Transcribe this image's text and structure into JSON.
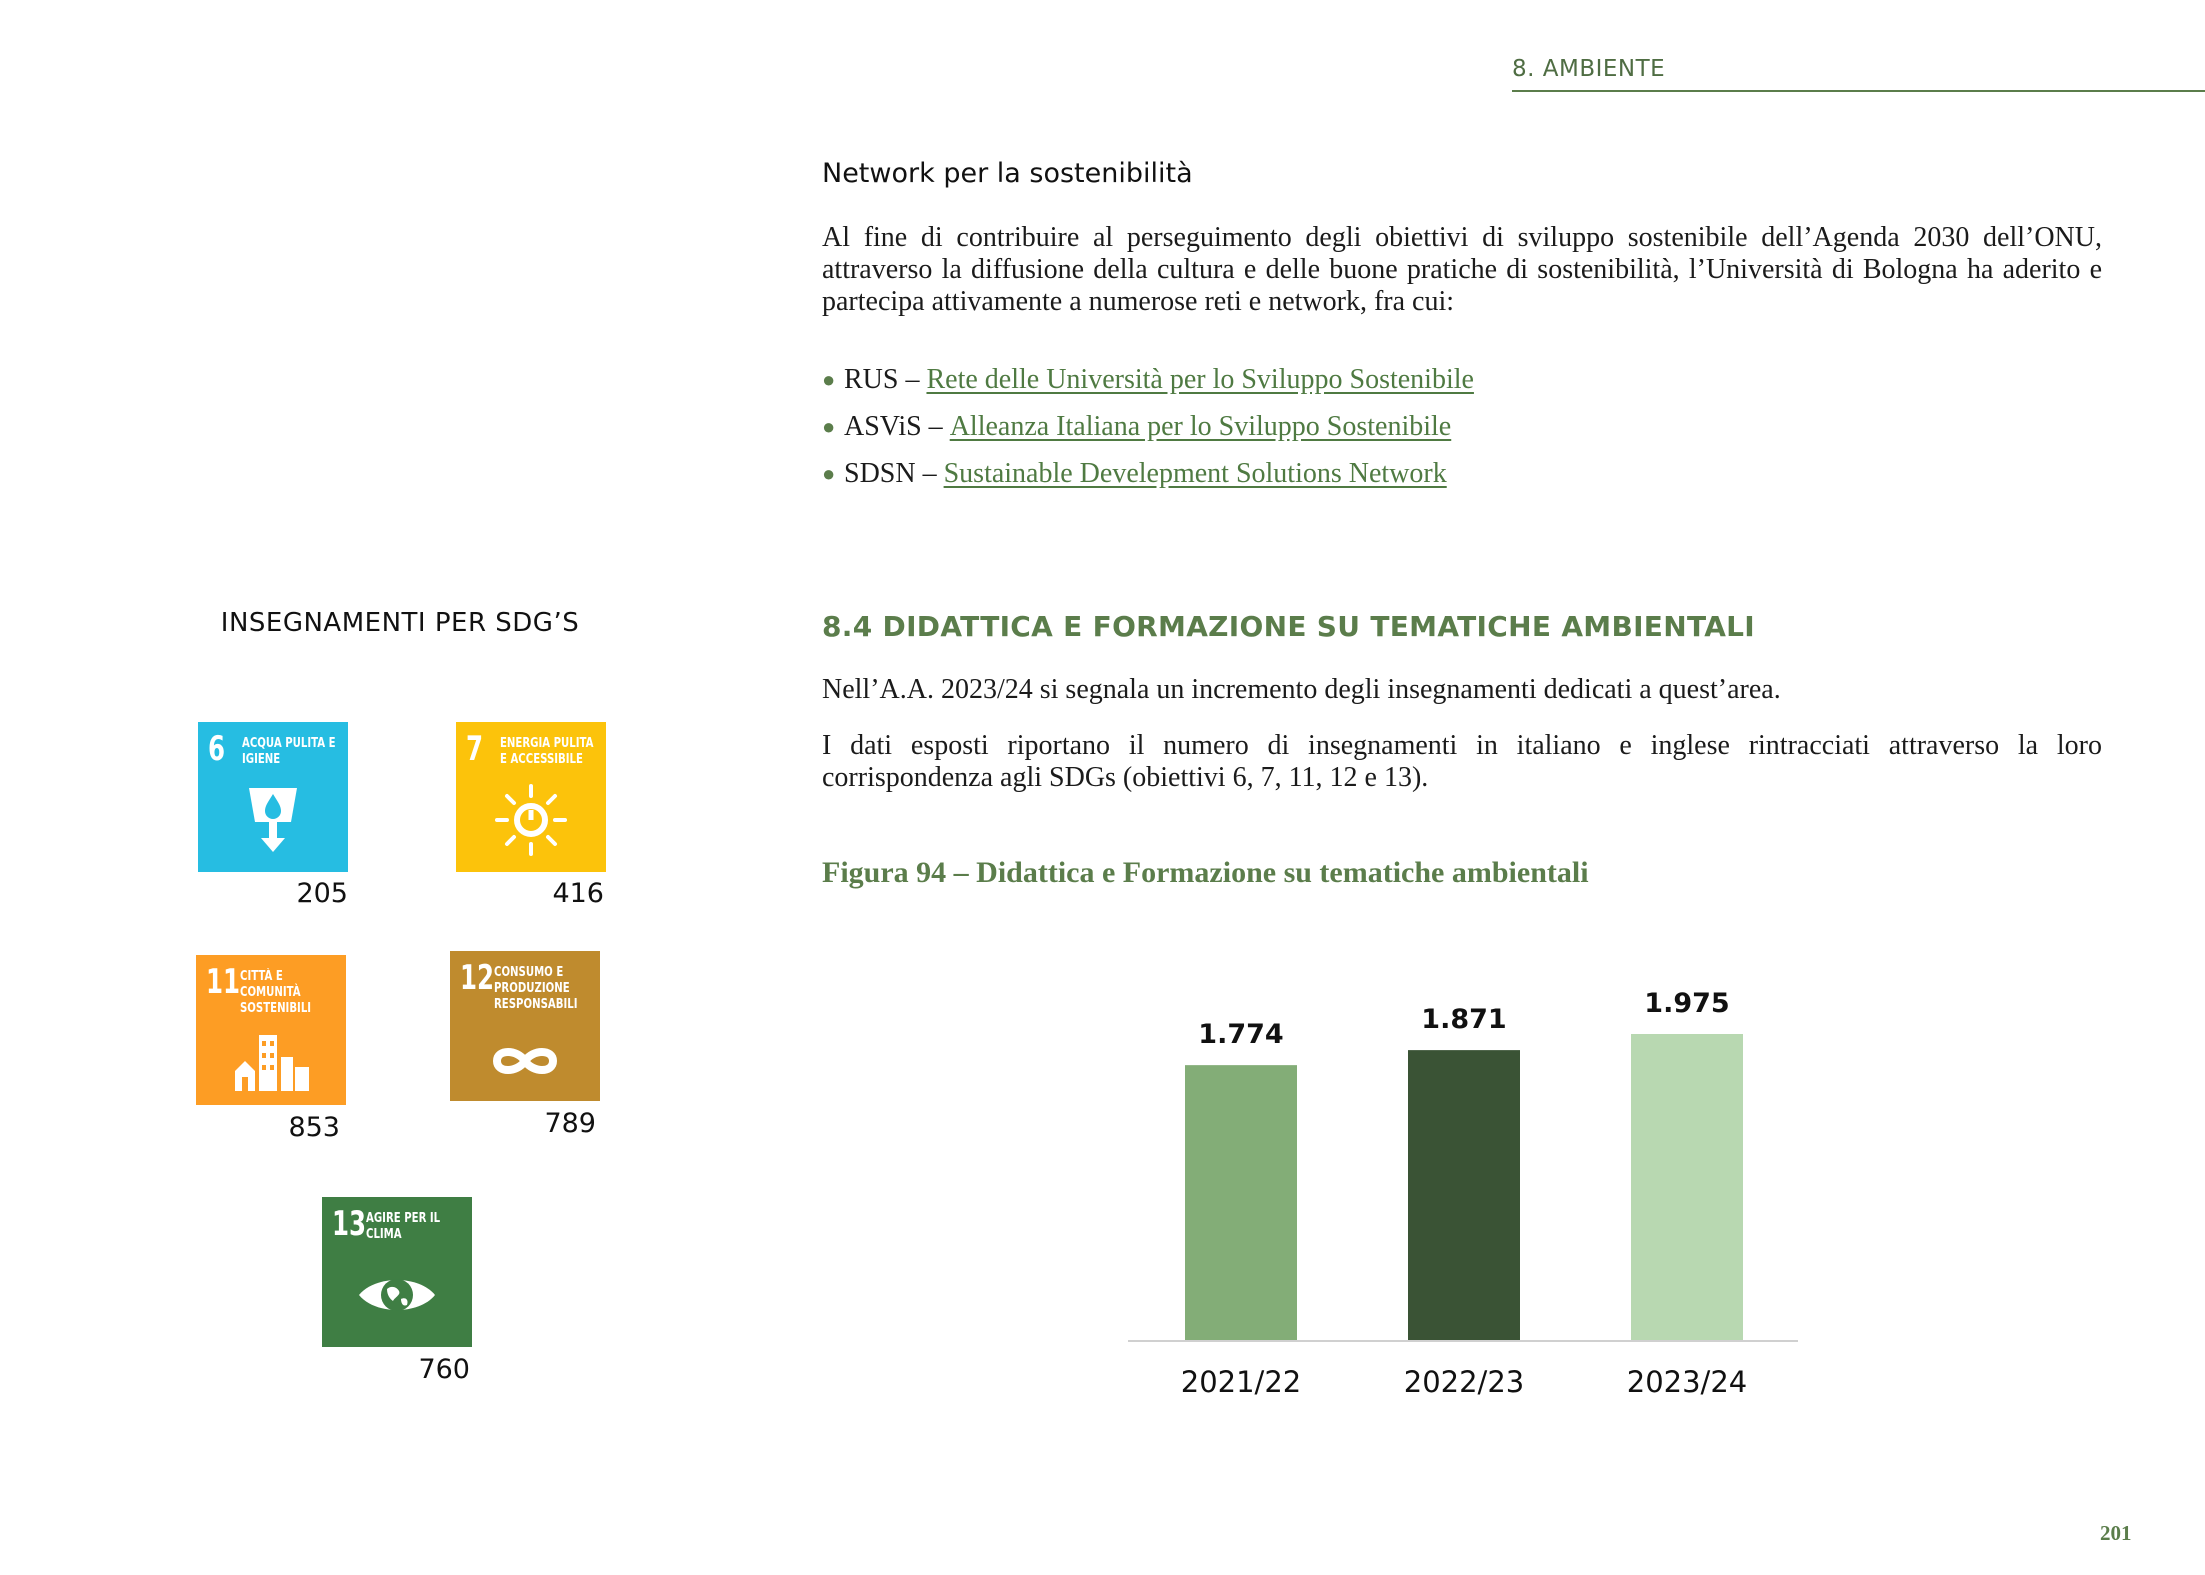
{
  "header": {
    "section": "8. AMBIENTE"
  },
  "network": {
    "title": "Network per la sostenibilità",
    "intro": "Al fine di contribuire al perseguimento degli obiettivi di sviluppo sostenibile dell’Agenda 2030 dell’ONU, attraverso la diffusione della cultura e delle buone pratiche di sostenibilità, l’Università di Bologna ha aderito e partecipa attivamente a numerose reti e network, fra cui:",
    "items": [
      {
        "abbr": "RUS –",
        "link": "Rete delle Università per lo Sviluppo Sostenibile"
      },
      {
        "abbr": "ASViS –",
        "link": "Alleanza Italiana per lo Sviluppo Sostenibile"
      },
      {
        "abbr": "SDSN –",
        "link": "Sustainable Develepment Solutions Network"
      }
    ]
  },
  "sdg_panel": {
    "title": "INSEGNAMENTI PER SDG’S",
    "tiles": [
      {
        "number": "6",
        "label": "ACQUA PULITA E IGIENE",
        "count": "205",
        "color": "#26bde2",
        "icon": "water-drop-icon"
      },
      {
        "number": "7",
        "label": "ENERGIA PULITA E ACCESSIBILE",
        "count": "416",
        "color": "#fcc30b",
        "icon": "sun-power-icon"
      },
      {
        "number": "11",
        "label": "CITTÀ E COMUNITÀ SOSTENIBILI",
        "count": "853",
        "color": "#fd9d24",
        "icon": "city-buildings-icon"
      },
      {
        "number": "12",
        "label": "CONSUMO E PRODUZIONE RESPONSABILI",
        "count": "789",
        "color": "#bf8b2e",
        "icon": "infinity-icon"
      },
      {
        "number": "13",
        "label": "AGIRE PER IL CLIMA",
        "count": "760",
        "color": "#3f7e44",
        "icon": "earth-eye-icon"
      }
    ]
  },
  "section84": {
    "heading": "8.4 DIDATTICA E FORMAZIONE SU TEMATICHE AMBIENTALI",
    "p1": "Nell’A.A. 2023/24 si segnala un incremento degli insegnamenti dedicati a quest’area.",
    "p2": "I dati esposti riportano il numero di insegnamenti in italiano e inglese rintracciati attraverso la loro corrispondenza agli SDGs (obiettivi 6, 7, 11, 12 e 13).",
    "figure_title": "Figura 94 – Didattica e Formazione su tematiche ambientali"
  },
  "chart_data": {
    "type": "bar",
    "categories": [
      "2021/22",
      "2022/23",
      "2023/24"
    ],
    "values": [
      1774,
      1871,
      1975
    ],
    "value_labels": [
      "1.774",
      "1.871",
      "1.975"
    ],
    "colors": [
      "#83ad77",
      "#3a5335",
      "#b8d8b1"
    ],
    "title": "",
    "xlabel": "",
    "ylabel": "",
    "ylim": [
      0,
      1975
    ],
    "grid": false,
    "legend": "none"
  },
  "page_number": "201"
}
